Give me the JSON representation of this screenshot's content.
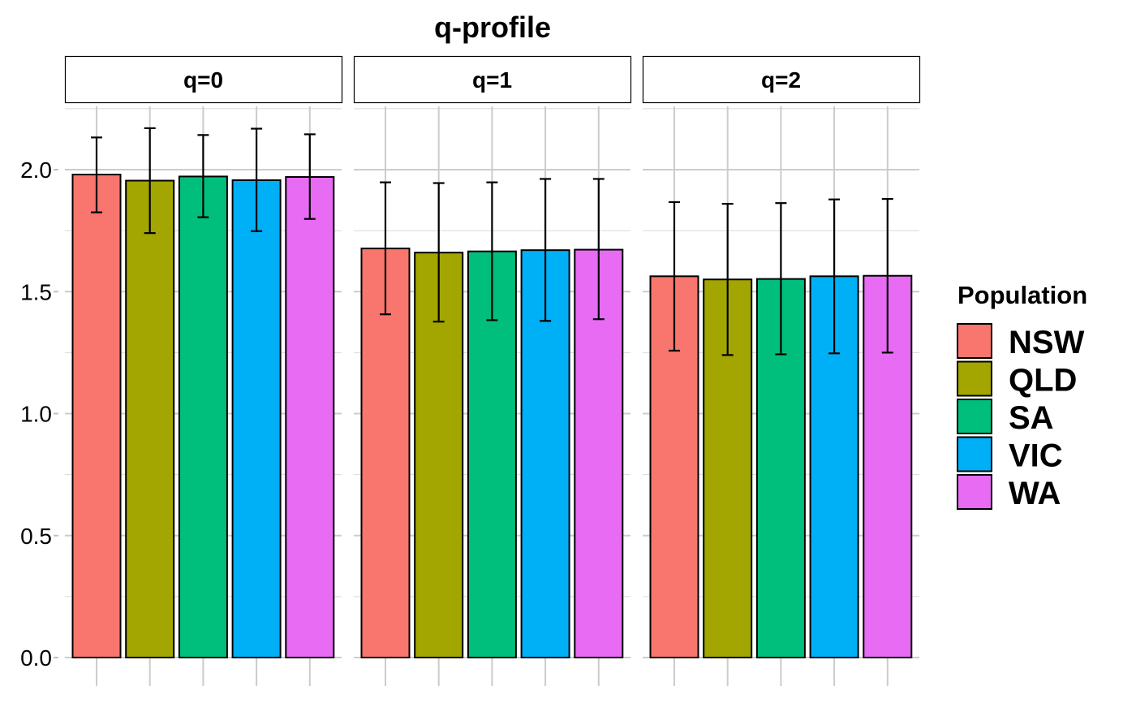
{
  "chart_data": {
    "type": "bar",
    "title": "q-profile",
    "xlabel": "",
    "ylabel": "",
    "ylim": [
      0,
      2.25
    ],
    "y_ticks": [
      "0.0",
      "0.5",
      "1.0",
      "1.5",
      "2.0"
    ],
    "grid": true,
    "legend": {
      "title": "Population",
      "placement": "right"
    },
    "categories": [
      "NSW",
      "QLD",
      "SA",
      "VIC",
      "WA"
    ],
    "colors": [
      "#F8766D",
      "#A3A500",
      "#00BF7D",
      "#00B0F6",
      "#E76BF3"
    ],
    "facets": [
      {
        "label": "q=0",
        "values": [
          1.98,
          1.955,
          1.972,
          1.957,
          1.97
        ],
        "error_low": [
          1.825,
          1.74,
          1.805,
          1.748,
          1.798
        ],
        "error_high": [
          2.132,
          2.17,
          2.142,
          2.168,
          2.145
        ]
      },
      {
        "label": "q=1",
        "values": [
          1.677,
          1.66,
          1.665,
          1.67,
          1.672
        ],
        "error_low": [
          1.407,
          1.377,
          1.383,
          1.38,
          1.387
        ],
        "error_high": [
          1.948,
          1.945,
          1.948,
          1.962,
          1.962
        ]
      },
      {
        "label": "q=2",
        "values": [
          1.563,
          1.55,
          1.552,
          1.563,
          1.565
        ],
        "error_low": [
          1.258,
          1.24,
          1.243,
          1.247,
          1.25
        ],
        "error_high": [
          1.867,
          1.86,
          1.863,
          1.878,
          1.88
        ]
      }
    ]
  }
}
